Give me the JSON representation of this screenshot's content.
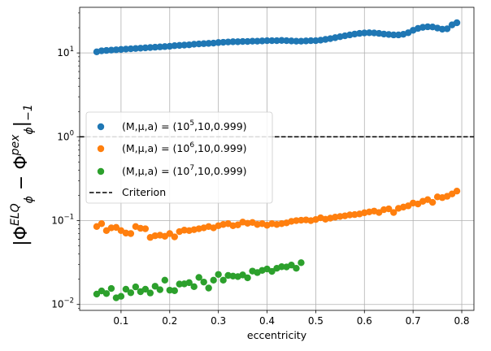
{
  "chart_data": {
    "type": "scatter",
    "xlabel": "eccentricity",
    "ylabel": {
      "base": "|Φ",
      "sub1": "ϕ",
      "sup1": "ELQ",
      "mid": " − Φ",
      "sub2": "ϕ",
      "sup2": "pex",
      "tail": "|",
      "sub3": "−1"
    },
    "yscale": "log",
    "xlim": [
      0.015,
      0.825
    ],
    "ylim": [
      0.0085,
      35
    ],
    "xticks": [
      {
        "value": 0.1,
        "label": "0.1"
      },
      {
        "value": 0.2,
        "label": "0.2"
      },
      {
        "value": 0.3,
        "label": "0.3"
      },
      {
        "value": 0.4,
        "label": "0.4"
      },
      {
        "value": 0.5,
        "label": "0.5"
      },
      {
        "value": 0.6,
        "label": "0.6"
      },
      {
        "value": 0.7,
        "label": "0.7"
      },
      {
        "value": 0.8,
        "label": "0.8"
      }
    ],
    "yticks": [
      {
        "value": 0.01,
        "base": "10",
        "exp": "−2"
      },
      {
        "value": 0.1,
        "base": "10",
        "exp": "−1"
      },
      {
        "value": 1,
        "base": "10",
        "exp": "0"
      },
      {
        "value": 10,
        "base": "10",
        "exp": "1"
      }
    ],
    "grid": true,
    "legend_position": "center-left",
    "criterion": {
      "y": 1.0,
      "label": "Criterion",
      "color": "#000000",
      "style": "dashed"
    },
    "series": [
      {
        "name": "(M,μ,a) = (10^5,10,0.999)",
        "legend_main": "(M,μ,a) = (10",
        "legend_exp": "5",
        "legend_tail": ",10,0.999)",
        "color": "#1f77b4",
        "x": [
          0.05,
          0.06,
          0.07,
          0.08,
          0.09,
          0.1,
          0.11,
          0.12,
          0.13,
          0.14,
          0.15,
          0.16,
          0.17,
          0.18,
          0.19,
          0.2,
          0.21,
          0.22,
          0.23,
          0.24,
          0.25,
          0.26,
          0.27,
          0.28,
          0.29,
          0.3,
          0.31,
          0.32,
          0.33,
          0.34,
          0.35,
          0.36,
          0.37,
          0.38,
          0.39,
          0.4,
          0.41,
          0.42,
          0.43,
          0.44,
          0.45,
          0.46,
          0.47,
          0.48,
          0.49,
          0.5,
          0.51,
          0.52,
          0.53,
          0.54,
          0.55,
          0.56,
          0.57,
          0.58,
          0.59,
          0.6,
          0.61,
          0.62,
          0.63,
          0.64,
          0.65,
          0.66,
          0.67,
          0.68,
          0.69,
          0.7,
          0.71,
          0.72,
          0.73,
          0.74,
          0.75,
          0.76,
          0.77,
          0.78,
          0.79
        ],
        "y": [
          10.3,
          10.6,
          10.7,
          10.8,
          10.9,
          11.0,
          11.1,
          11.2,
          11.3,
          11.4,
          11.5,
          11.6,
          11.7,
          11.8,
          11.9,
          12.0,
          12.2,
          12.3,
          12.4,
          12.5,
          12.7,
          12.8,
          12.9,
          13.0,
          13.1,
          13.3,
          13.4,
          13.5,
          13.6,
          13.6,
          13.7,
          13.7,
          13.8,
          13.8,
          13.9,
          14.0,
          14.0,
          14.0,
          14.1,
          14.0,
          13.9,
          13.8,
          13.8,
          13.9,
          14.0,
          14.0,
          14.2,
          14.5,
          14.8,
          15.2,
          15.6,
          16.0,
          16.4,
          16.8,
          17.1,
          17.3,
          17.4,
          17.3,
          17.1,
          16.8,
          16.6,
          16.4,
          16.4,
          16.7,
          17.4,
          18.6,
          19.6,
          20.2,
          20.5,
          20.4,
          19.8,
          19.2,
          19.4,
          21.6,
          22.9
        ]
      },
      {
        "name": "(M,μ,a) = (10^6,10,0.999)",
        "legend_main": "(M,μ,a) = (10",
        "legend_exp": "6",
        "legend_tail": ",10,0.999)",
        "color": "#ff7f0e",
        "x": [
          0.05,
          0.06,
          0.07,
          0.08,
          0.09,
          0.1,
          0.11,
          0.12,
          0.13,
          0.14,
          0.15,
          0.16,
          0.17,
          0.18,
          0.19,
          0.2,
          0.21,
          0.22,
          0.23,
          0.24,
          0.25,
          0.26,
          0.27,
          0.28,
          0.29,
          0.3,
          0.31,
          0.32,
          0.33,
          0.34,
          0.35,
          0.36,
          0.37,
          0.38,
          0.39,
          0.4,
          0.41,
          0.42,
          0.43,
          0.44,
          0.45,
          0.46,
          0.47,
          0.48,
          0.49,
          0.5,
          0.51,
          0.52,
          0.53,
          0.54,
          0.55,
          0.56,
          0.57,
          0.58,
          0.59,
          0.6,
          0.61,
          0.62,
          0.63,
          0.64,
          0.65,
          0.66,
          0.67,
          0.68,
          0.69,
          0.7,
          0.71,
          0.72,
          0.73,
          0.74,
          0.75,
          0.76,
          0.77,
          0.78,
          0.79
        ],
        "y": [
          0.085,
          0.092,
          0.076,
          0.082,
          0.083,
          0.076,
          0.071,
          0.07,
          0.085,
          0.081,
          0.08,
          0.063,
          0.066,
          0.067,
          0.065,
          0.07,
          0.064,
          0.074,
          0.077,
          0.076,
          0.078,
          0.08,
          0.082,
          0.085,
          0.082,
          0.087,
          0.09,
          0.092,
          0.087,
          0.089,
          0.096,
          0.093,
          0.095,
          0.09,
          0.092,
          0.088,
          0.092,
          0.09,
          0.092,
          0.094,
          0.098,
          0.1,
          0.101,
          0.102,
          0.1,
          0.103,
          0.108,
          0.104,
          0.107,
          0.11,
          0.112,
          0.114,
          0.117,
          0.118,
          0.12,
          0.124,
          0.127,
          0.13,
          0.125,
          0.135,
          0.138,
          0.125,
          0.14,
          0.145,
          0.15,
          0.162,
          0.158,
          0.17,
          0.178,
          0.165,
          0.192,
          0.188,
          0.195,
          0.208,
          0.225
        ]
      },
      {
        "name": "(M,μ,a) = (10^7,10,0.999)",
        "legend_main": "(M,μ,a) = (10",
        "legend_exp": "7",
        "legend_tail": ",10,0.999)",
        "color": "#2ca02c",
        "x": [
          0.05,
          0.06,
          0.07,
          0.08,
          0.09,
          0.1,
          0.11,
          0.12,
          0.13,
          0.14,
          0.15,
          0.16,
          0.17,
          0.18,
          0.19,
          0.2,
          0.21,
          0.22,
          0.23,
          0.24,
          0.25,
          0.26,
          0.27,
          0.28,
          0.29,
          0.3,
          0.31,
          0.32,
          0.33,
          0.34,
          0.35,
          0.36,
          0.37,
          0.38,
          0.39,
          0.4,
          0.41,
          0.42,
          0.43,
          0.44,
          0.45,
          0.46,
          0.47
        ],
        "y": [
          0.0133,
          0.0145,
          0.0135,
          0.0155,
          0.012,
          0.0125,
          0.0152,
          0.0138,
          0.0162,
          0.0142,
          0.0152,
          0.0137,
          0.0165,
          0.015,
          0.0195,
          0.0148,
          0.0146,
          0.0175,
          0.0176,
          0.0182,
          0.0163,
          0.021,
          0.0185,
          0.0157,
          0.0195,
          0.0228,
          0.0195,
          0.0222,
          0.0218,
          0.0215,
          0.0225,
          0.0208,
          0.025,
          0.024,
          0.0255,
          0.0265,
          0.0248,
          0.027,
          0.0282,
          0.028,
          0.0295,
          0.027,
          0.0315
        ]
      }
    ]
  }
}
